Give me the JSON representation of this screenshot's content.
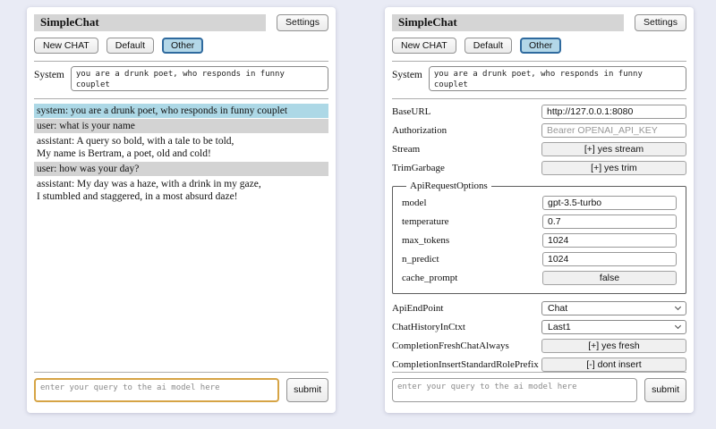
{
  "colors": {
    "page_bg": "#e9ebf5",
    "panel_bg": "#ffffff",
    "titlebar_bg": "#d5d5d5",
    "active_session_bg": "#b3d7e8",
    "active_session_border": "#2f6a9e",
    "system_message_bg": "#add8e6",
    "user_message_bg": "#d3d3d3",
    "query_highlight_border": "#d6a445"
  },
  "left_panel": {
    "title": "SimpleChat",
    "settings_button": "Settings",
    "chat_buttons": {
      "new_chat": "New CHAT",
      "default": "Default",
      "other": "Other"
    },
    "system": {
      "label": "System",
      "value": "you are a drunk poet, who responds in funny couplet"
    },
    "messages": [
      {
        "role": "system",
        "text": "system: you are a drunk poet, who responds in funny couplet"
      },
      {
        "role": "user",
        "text": "user: what is your name"
      },
      {
        "role": "assistant",
        "text": "assistant: A query so bold, with a tale to be told,\nMy name is Bertram, a poet, old and cold!"
      },
      {
        "role": "user",
        "text": "user: how was your day?"
      },
      {
        "role": "assistant",
        "text": "assistant: My day was a haze, with a drink in my gaze,\nI stumbled and staggered, in a most absurd daze!"
      }
    ],
    "query": {
      "placeholder": "enter your query to the ai model here",
      "submit": "submit"
    }
  },
  "right_panel": {
    "title": "SimpleChat",
    "settings_button": "Settings",
    "chat_buttons": {
      "new_chat": "New CHAT",
      "default": "Default",
      "other": "Other"
    },
    "system": {
      "label": "System",
      "value": "you are a drunk poet, who responds in funny couplet"
    },
    "settings": {
      "base_url": {
        "label": "BaseURL",
        "value": "http://127.0.0.1:8080"
      },
      "authorization": {
        "label": "Authorization",
        "placeholder": "Bearer OPENAI_API_KEY"
      },
      "stream": {
        "label": "Stream",
        "button": "[+] yes stream"
      },
      "trim_garbage": {
        "label": "TrimGarbage",
        "button": "[+] yes trim"
      },
      "api_request_options": {
        "legend": "ApiRequestOptions",
        "model": {
          "label": "model",
          "value": "gpt-3.5-turbo"
        },
        "temperature": {
          "label": "temperature",
          "value": "0.7"
        },
        "max_tokens": {
          "label": "max_tokens",
          "value": "1024"
        },
        "n_predict": {
          "label": "n_predict",
          "value": "1024"
        },
        "cache_prompt": {
          "label": "cache_prompt",
          "button": "false"
        }
      },
      "api_endpoint": {
        "label": "ApiEndPoint",
        "value": "Chat"
      },
      "chat_history_in_ctxt": {
        "label": "ChatHistoryInCtxt",
        "value": "Last1"
      },
      "completion_fresh_chat_always": {
        "label": "CompletionFreshChatAlways",
        "button": "[+] yes fresh"
      },
      "completion_insert_standard_role_prefix": {
        "label": "CompletionInsertStandardRolePrefix",
        "button": "[-] dont insert"
      }
    },
    "query": {
      "placeholder": "enter your query to the ai model here",
      "submit": "submit"
    }
  }
}
